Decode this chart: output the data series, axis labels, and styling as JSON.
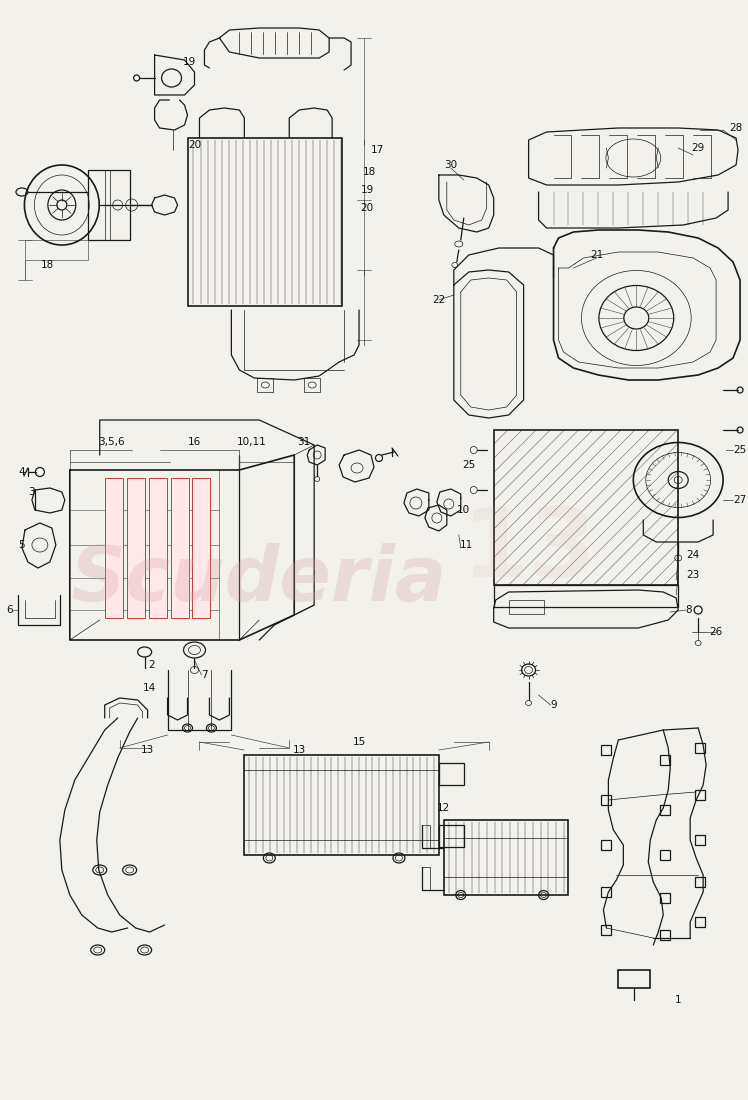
{
  "bg": "#f2f1ec",
  "lc": "#1a1a1a",
  "wm_color": "#d4a0a0",
  "wm_alpha": 0.28,
  "figsize": [
    7.48,
    11.0
  ],
  "dpi": 100,
  "label_fs": 7.5,
  "label_color": "#111111"
}
